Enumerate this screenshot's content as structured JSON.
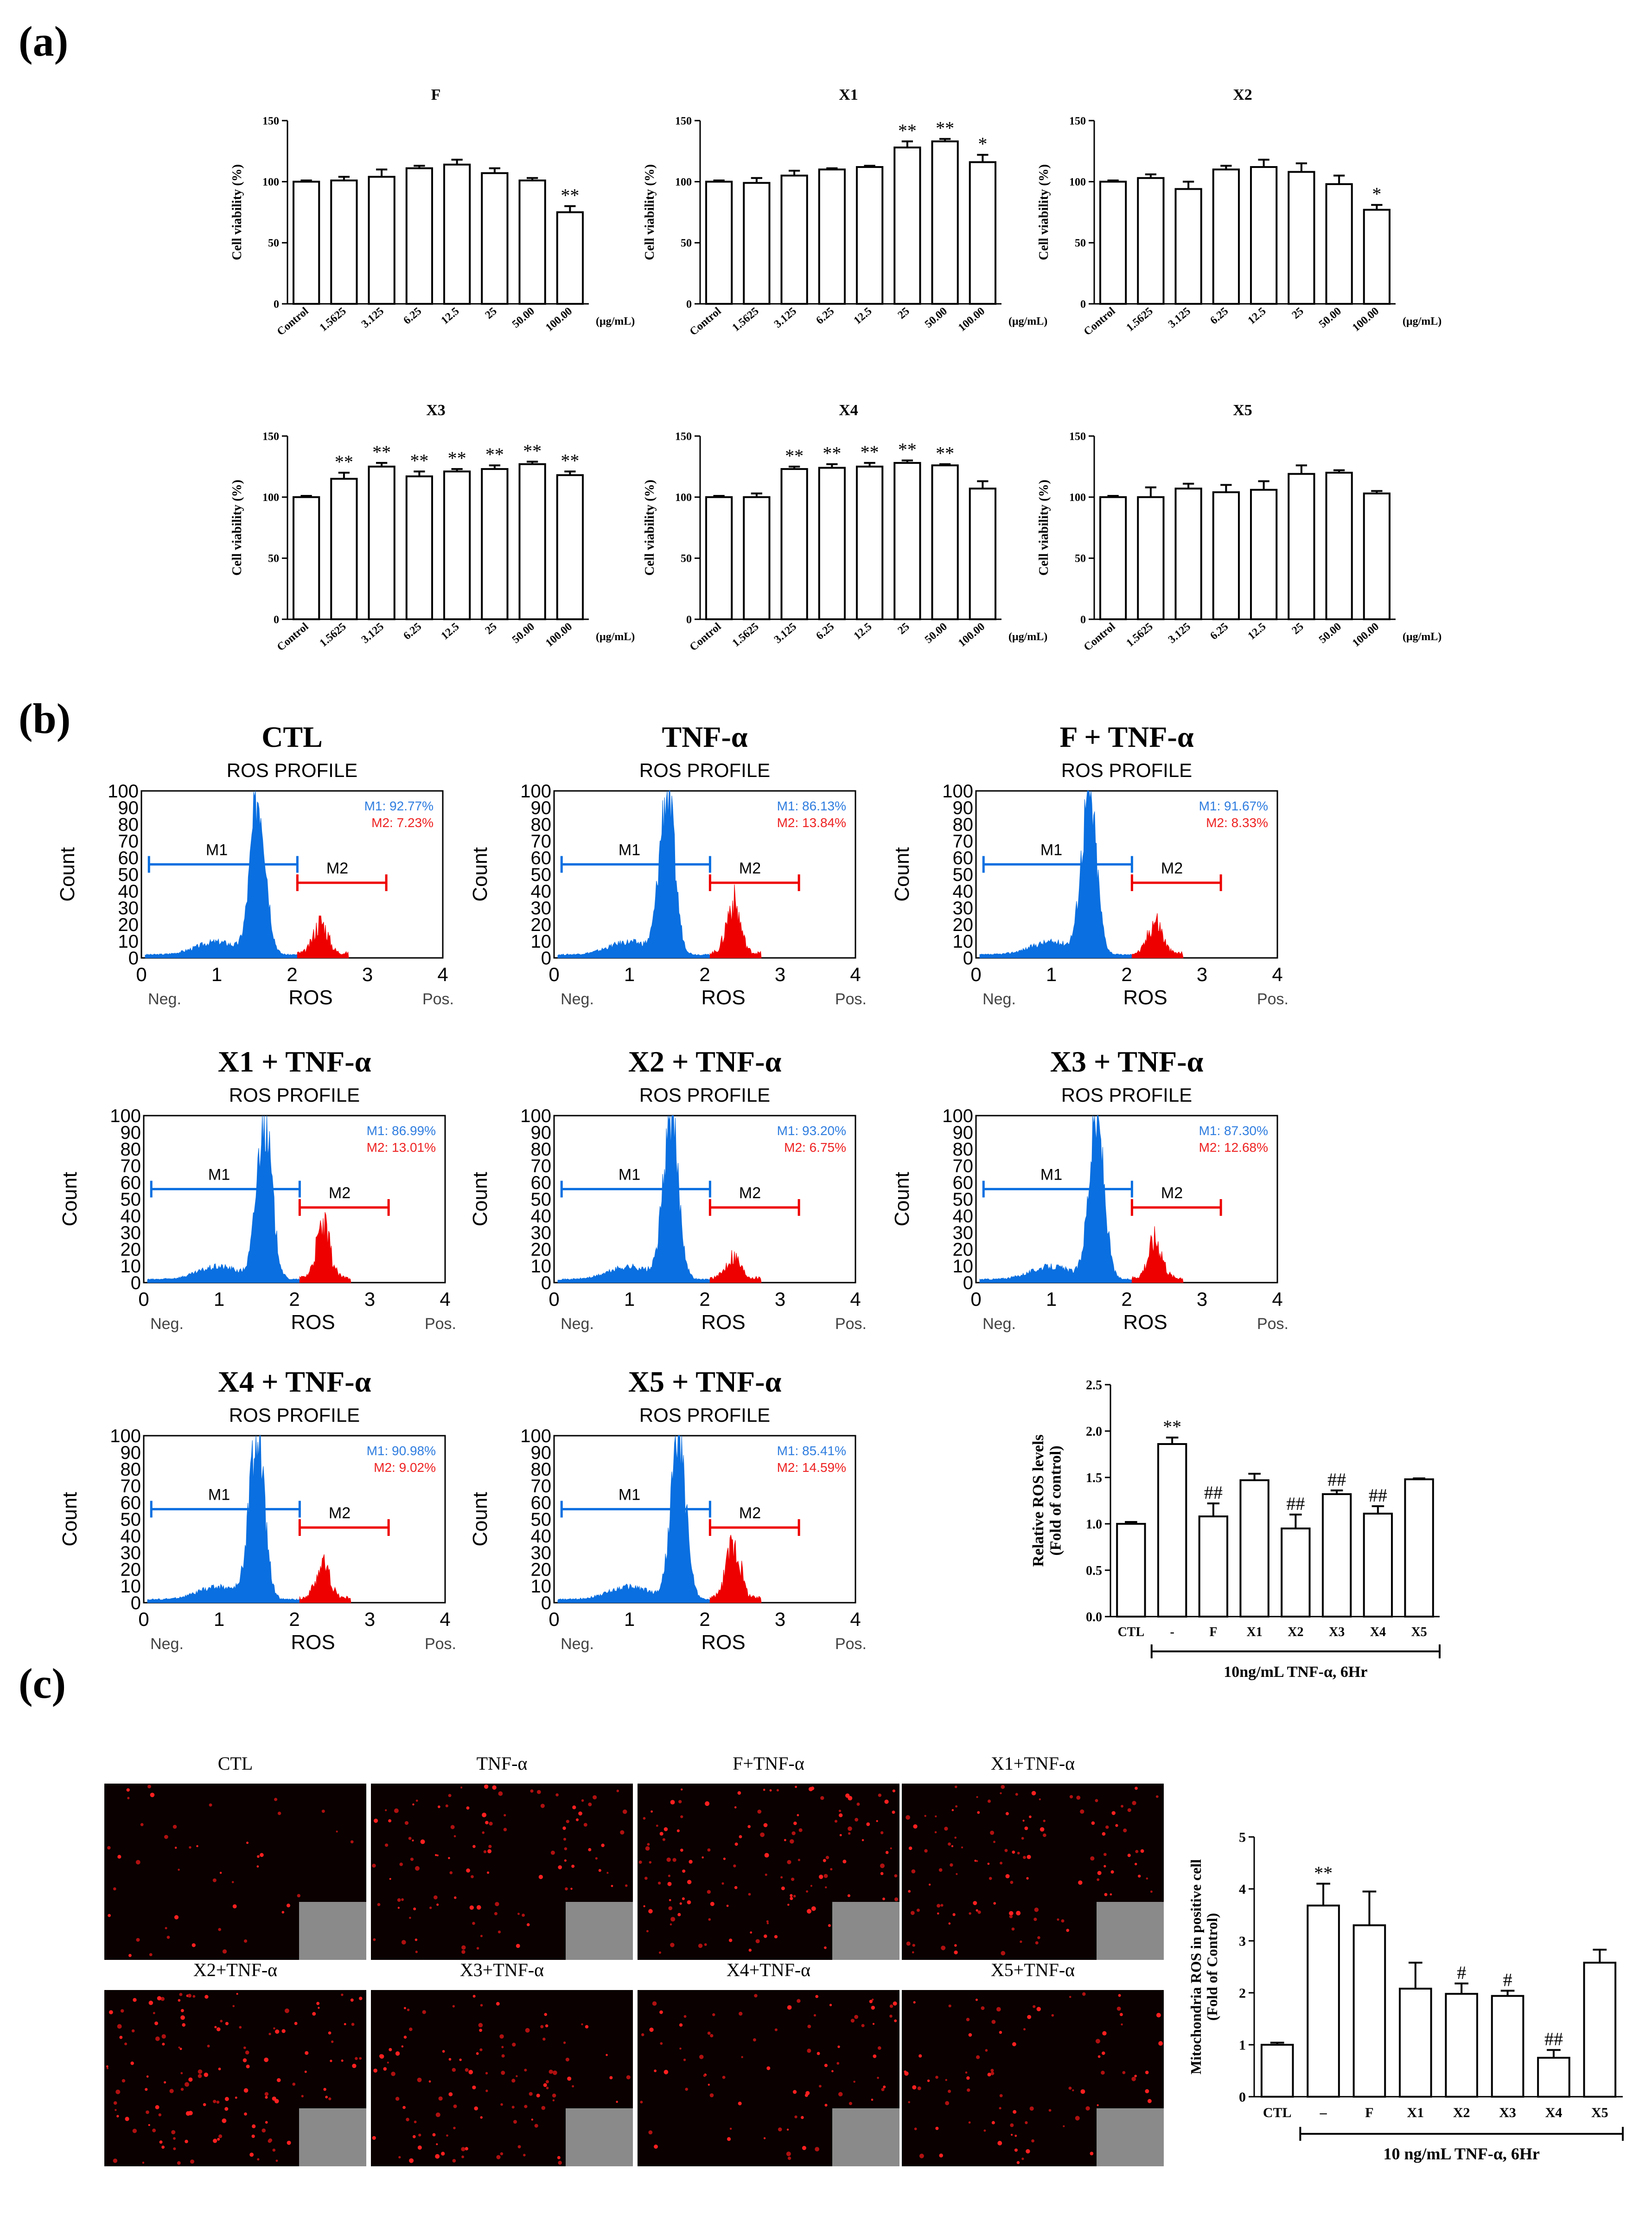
{
  "panel_labels": {
    "a": "(a)",
    "b": "(b)",
    "c": "(c)"
  },
  "colors": {
    "blue": "#0a6fe0",
    "red": "#ee0000",
    "blue_text": "#2f7ddf",
    "red_text": "#ee2222",
    "black": "#000000"
  },
  "panel_a": {
    "ylabel": "Cell viability (%)",
    "unit": "(μg/mL)",
    "categories": [
      "Control",
      "1.5625",
      "3.125",
      "6.25",
      "12.5",
      "25",
      "50.00",
      "100.00"
    ],
    "yticks": [
      "0",
      "50",
      "100",
      "150"
    ]
  },
  "panel_b": {
    "profile_title": "ROS PROFILE",
    "xlabel": "ROS",
    "ylabel": "Count",
    "neg_label": "Neg.",
    "pos_label": "Pos.",
    "m1_label": "M1",
    "m2_label": "M2",
    "xticks": [
      "0",
      "1",
      "2",
      "3",
      "4"
    ],
    "yticks": [
      "100",
      "90",
      "80",
      "70",
      "60",
      "50",
      "40",
      "30",
      "20",
      "10",
      "0"
    ]
  },
  "panel_c": {
    "micrograph_labels": [
      "CTL",
      "TNF-α",
      "F+TNF-α",
      "X1+TNF-α",
      "X2+TNF-α",
      "X3+TNF-α",
      "X4+TNF-α",
      "X5+TNF-α"
    ]
  },
  "chart_data": [
    {
      "id": "a-F",
      "type": "bar",
      "title": "F",
      "categories": [
        "Control",
        "1.5625",
        "3.125",
        "6.25",
        "12.5",
        "25",
        "50.00",
        "100.00"
      ],
      "values": [
        100,
        101,
        104,
        111,
        114,
        107,
        101,
        75
      ],
      "errors": [
        1,
        3,
        6,
        2,
        4,
        4,
        2,
        5
      ],
      "annotations": [
        "",
        "",
        "",
        "",
        "",
        "",
        "",
        "**"
      ],
      "ylabel": "Cell viability (%)",
      "xlabel": "(μg/mL)",
      "ylim": [
        0,
        150
      ]
    },
    {
      "id": "a-X1",
      "type": "bar",
      "title": "X1",
      "categories": [
        "Control",
        "1.5625",
        "3.125",
        "6.25",
        "12.5",
        "25",
        "50.00",
        "100.00"
      ],
      "values": [
        100,
        99,
        105,
        110,
        112,
        128,
        133,
        116
      ],
      "errors": [
        1,
        4,
        4,
        1,
        1,
        5,
        2,
        6
      ],
      "annotations": [
        "",
        "",
        "",
        "",
        "",
        "**",
        "**",
        "*"
      ],
      "ylabel": "Cell viability (%)",
      "xlabel": "(μg/mL)",
      "ylim": [
        0,
        150
      ]
    },
    {
      "id": "a-X2",
      "type": "bar",
      "title": "X2",
      "categories": [
        "Control",
        "1.5625",
        "3.125",
        "6.25",
        "12.5",
        "25",
        "50.00",
        "100.00"
      ],
      "values": [
        100,
        103,
        94,
        110,
        112,
        108,
        98,
        77
      ],
      "errors": [
        1,
        3,
        6,
        3,
        6,
        7,
        7,
        4
      ],
      "annotations": [
        "",
        "",
        "",
        "",
        "",
        "",
        "",
        "*"
      ],
      "ylabel": "Cell viability (%)",
      "xlabel": "(μg/mL)",
      "ylim": [
        0,
        150
      ]
    },
    {
      "id": "a-X3",
      "type": "bar",
      "title": "X3",
      "categories": [
        "Control",
        "1.5625",
        "3.125",
        "6.25",
        "12.5",
        "25",
        "50.00",
        "100.00"
      ],
      "values": [
        100,
        115,
        125,
        117,
        121,
        123,
        127,
        118
      ],
      "errors": [
        1,
        5,
        3,
        4,
        2,
        3,
        2,
        3
      ],
      "annotations": [
        "",
        "**",
        "**",
        "**",
        "**",
        "**",
        "**",
        "**"
      ],
      "ylabel": "Cell viability (%)",
      "xlabel": "(μg/mL)",
      "ylim": [
        0,
        150
      ]
    },
    {
      "id": "a-X4",
      "type": "bar",
      "title": "X4",
      "categories": [
        "Control",
        "1.5625",
        "3.125",
        "6.25",
        "12.5",
        "25",
        "50.00",
        "100.00"
      ],
      "values": [
        100,
        100,
        123,
        124,
        125,
        128,
        126,
        107
      ],
      "errors": [
        1,
        3,
        2,
        3,
        3,
        2,
        1,
        6
      ],
      "annotations": [
        "",
        "",
        "**",
        "**",
        "**",
        "**",
        "**",
        ""
      ],
      "ylabel": "Cell viability (%)",
      "xlabel": "(μg/mL)",
      "ylim": [
        0,
        150
      ]
    },
    {
      "id": "a-X5",
      "type": "bar",
      "title": "X5",
      "categories": [
        "Control",
        "1.5625",
        "3.125",
        "6.25",
        "12.5",
        "25",
        "50.00",
        "100.00"
      ],
      "values": [
        100,
        100,
        107,
        104,
        106,
        119,
        120,
        103
      ],
      "errors": [
        1,
        8,
        4,
        6,
        7,
        7,
        2,
        2
      ],
      "annotations": [
        "",
        "",
        "",
        "",
        "",
        "",
        "",
        ""
      ],
      "ylabel": "Cell viability (%)",
      "xlabel": "(μg/mL)",
      "ylim": [
        0,
        150
      ]
    },
    {
      "id": "b-hist",
      "type": "area",
      "title": "ROS PROFILE histograms",
      "series": [
        {
          "name": "CTL",
          "M1": "92.77%",
          "M2": "7.23%"
        },
        {
          "name": "TNF-α",
          "M1": "86.13%",
          "M2": "13.84%"
        },
        {
          "name": "F + TNF-α",
          "M1": "91.67%",
          "M2": "8.33%"
        },
        {
          "name": "X1 + TNF-α",
          "M1": "86.99%",
          "M2": "13.01%"
        },
        {
          "name": "X2 + TNF-α",
          "M1": "93.20%",
          "M2": "6.75%"
        },
        {
          "name": "X3 + TNF-α",
          "M1": "87.30%",
          "M2": "12.68%"
        },
        {
          "name": "X4 + TNF-α",
          "M1": "90.98%",
          "M2": "9.02%"
        },
        {
          "name": "X5 + TNF-α",
          "M1": "85.41%",
          "M2": "14.59%"
        }
      ],
      "xlabel": "ROS",
      "ylabel": "Count",
      "xlim": [
        0,
        4
      ],
      "ylim": [
        0,
        100
      ]
    },
    {
      "id": "b-bar",
      "type": "bar",
      "title": "",
      "categories": [
        "CTL",
        "-",
        "F",
        "X1",
        "X2",
        "X3",
        "X4",
        "X5"
      ],
      "values": [
        1.0,
        1.86,
        1.08,
        1.47,
        0.95,
        1.32,
        1.11,
        1.48
      ],
      "errors": [
        0.02,
        0.07,
        0.14,
        0.07,
        0.15,
        0.04,
        0.08,
        0.01
      ],
      "annotations": [
        "",
        "**",
        "##",
        "",
        "##",
        "##",
        "##",
        ""
      ],
      "ylabel": "Relative ROS levels",
      "ylabel2": "(Fold of control)",
      "group_label": "10ng/mL TNF-α, 6Hr",
      "ylim": [
        0,
        2.5
      ],
      "yticks": [
        "0.0",
        "0.5",
        "1.0",
        "1.5",
        "2.0",
        "2.5"
      ]
    },
    {
      "id": "c-bar",
      "type": "bar",
      "title": "",
      "categories": [
        "CTL",
        "–",
        "F",
        "X1",
        "X2",
        "X3",
        "X4",
        "X5"
      ],
      "values": [
        1.0,
        3.68,
        3.3,
        2.08,
        1.98,
        1.94,
        0.75,
        2.58
      ],
      "errors": [
        0.04,
        0.42,
        0.65,
        0.5,
        0.2,
        0.1,
        0.15,
        0.25
      ],
      "annotations": [
        "",
        "**",
        "",
        "",
        "#",
        "#",
        "##",
        ""
      ],
      "ylabel": "Mitochondria ROS in positive cell",
      "ylabel2": "(Fold of Control)",
      "group_label": "10 ng/mL TNF-α, 6Hr",
      "ylim": [
        0,
        5
      ],
      "yticks": [
        "0",
        "1",
        "2",
        "3",
        "4",
        "5"
      ]
    }
  ]
}
